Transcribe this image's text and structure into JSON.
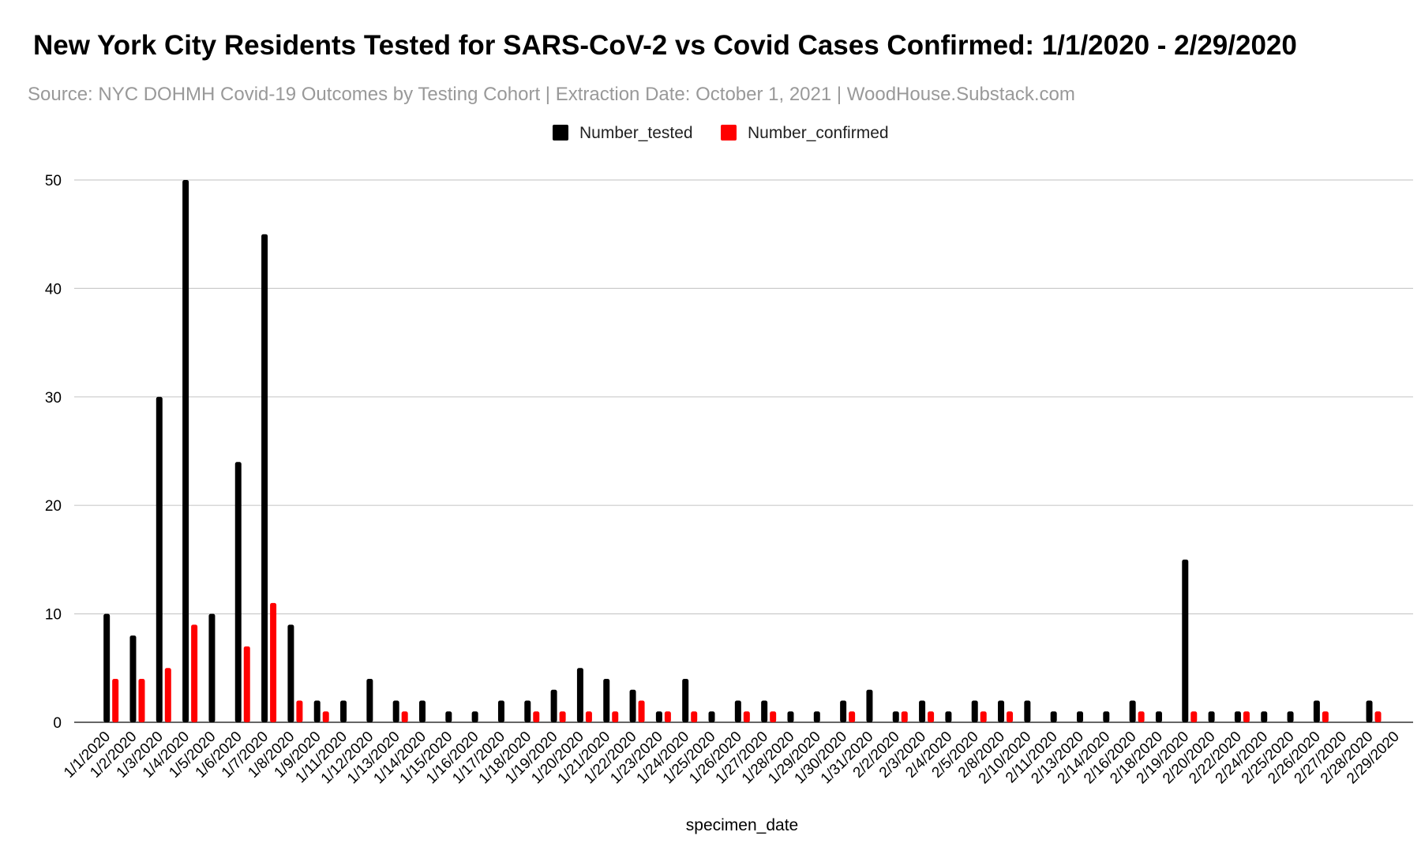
{
  "chart_data": {
    "type": "bar",
    "title": "New York City Residents Tested for SARS-CoV-2 vs Covid Cases Confirmed: 1/1/2020 - 2/29/2020",
    "subtitle": "Source: NYC DOHMH Covid-19 Outcomes by Testing Cohort | Extraction Date: October 1, 2021 | WoodHouse.Substack.com",
    "xlabel": "specimen_date",
    "ylabel": "",
    "ylim": [
      0,
      50
    ],
    "yticks": [
      0,
      10,
      20,
      30,
      40,
      50
    ],
    "grid": true,
    "legend_position": "top-center",
    "categories": [
      "1/1/2020",
      "1/2/2020",
      "1/3/2020",
      "1/4/2020",
      "1/5/2020",
      "1/6/2020",
      "1/7/2020",
      "1/8/2020",
      "1/9/2020",
      "1/11/2020",
      "1/12/2020",
      "1/13/2020",
      "1/14/2020",
      "1/15/2020",
      "1/16/2020",
      "1/17/2020",
      "1/18/2020",
      "1/19/2020",
      "1/20/2020",
      "1/21/2020",
      "1/22/2020",
      "1/23/2020",
      "1/24/2020",
      "1/25/2020",
      "1/26/2020",
      "1/27/2020",
      "1/28/2020",
      "1/29/2020",
      "1/30/2020",
      "1/31/2020",
      "2/2/2020",
      "2/3/2020",
      "2/4/2020",
      "2/5/2020",
      "2/8/2020",
      "2/10/2020",
      "2/11/2020",
      "2/13/2020",
      "2/14/2020",
      "2/16/2020",
      "2/18/2020",
      "2/19/2020",
      "2/20/2020",
      "2/22/2020",
      "2/24/2020",
      "2/25/2020",
      "2/26/2020",
      "2/27/2020",
      "2/28/2020",
      "2/29/2020"
    ],
    "series": [
      {
        "name": "Number_tested",
        "color": "#000000",
        "values": [
          10,
          8,
          30,
          50,
          10,
          24,
          45,
          9,
          2,
          2,
          4,
          2,
          2,
          1,
          1,
          2,
          2,
          3,
          5,
          4,
          3,
          1,
          4,
          1,
          2,
          2,
          1,
          1,
          2,
          3,
          1,
          2,
          1,
          2,
          2,
          2,
          1,
          1,
          1,
          2,
          1,
          15,
          1,
          1,
          1,
          1,
          2,
          0,
          2,
          0
        ]
      },
      {
        "name": "Number_confirmed",
        "color": "#ff0000",
        "values": [
          4,
          4,
          5,
          9,
          0,
          7,
          11,
          2,
          1,
          0,
          0,
          1,
          0,
          0,
          0,
          0,
          1,
          1,
          1,
          1,
          2,
          1,
          1,
          0,
          1,
          1,
          0,
          0,
          1,
          0,
          1,
          1,
          0,
          1,
          1,
          0,
          0,
          0,
          0,
          1,
          0,
          1,
          0,
          1,
          0,
          0,
          1,
          0,
          1,
          0
        ]
      }
    ]
  }
}
